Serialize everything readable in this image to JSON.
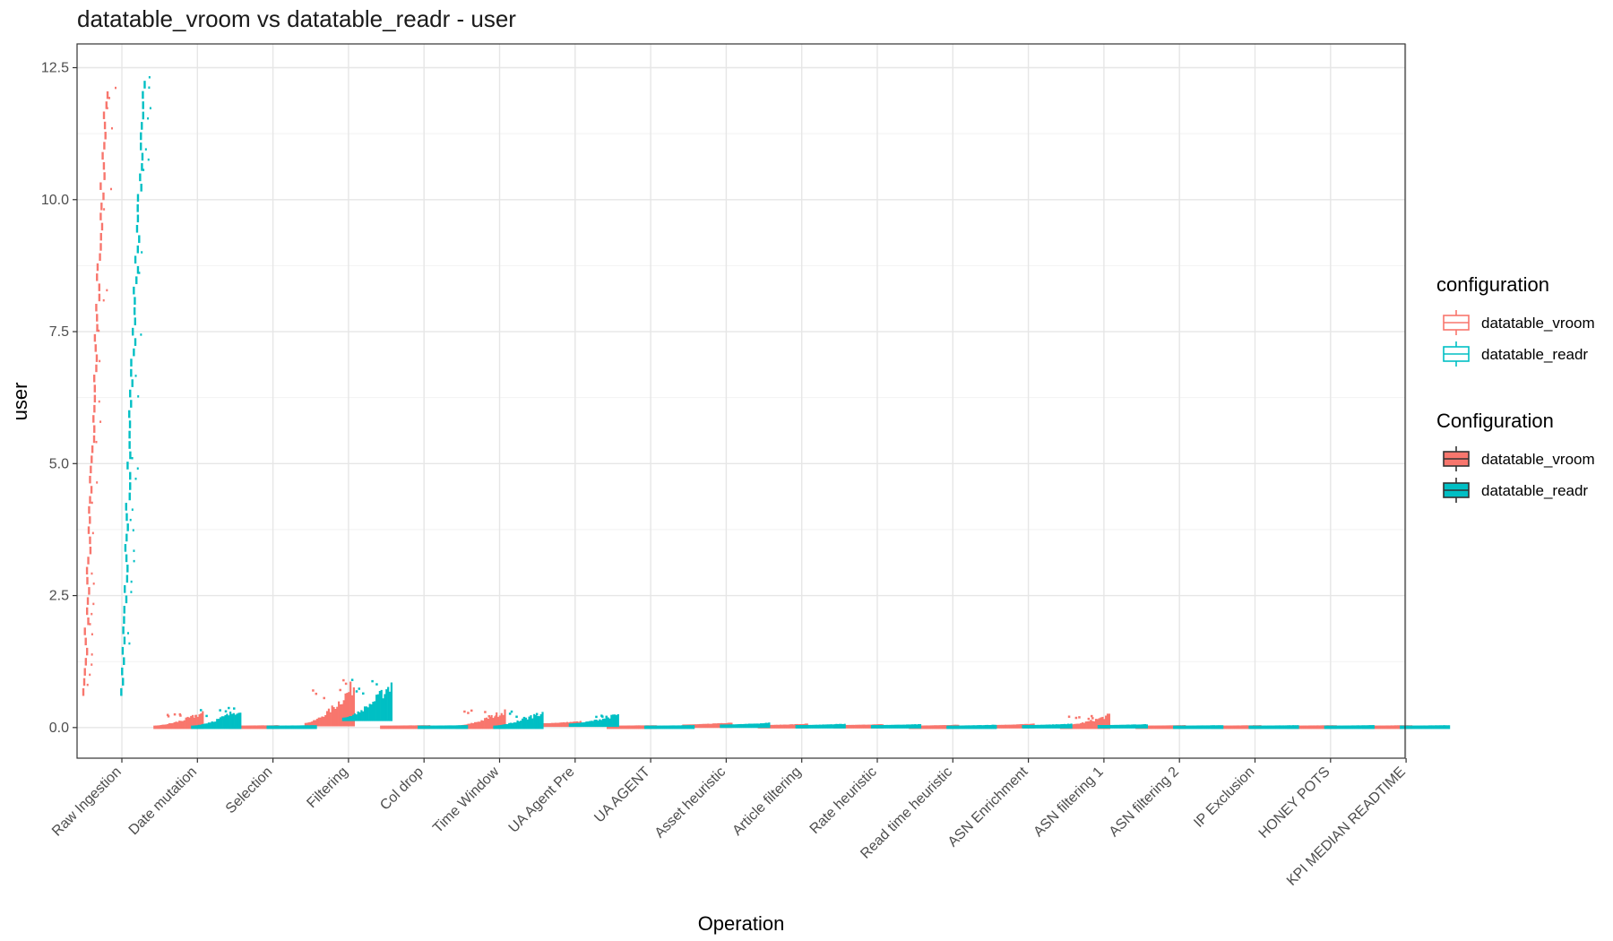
{
  "chart_data": {
    "type": "boxplot",
    "title": "datatable_vroom vs datatable_readr - user",
    "xlabel": "Operation",
    "ylabel": "user",
    "ylim": [
      -0.58,
      12.95
    ],
    "yticks": [
      0.0,
      2.5,
      5.0,
      7.5,
      10.0,
      12.5
    ],
    "ytick_labels": [
      "0.0",
      "2.5",
      "5.0",
      "7.5",
      "10.0",
      "12.5"
    ],
    "grid": true,
    "legend_position": "right",
    "categories": [
      "Raw Ingestion",
      "Date mutation",
      "Selection",
      "Filtering",
      "Col drop",
      "Time Window",
      "UA Agent Pre",
      "UA AGENT",
      "Asset heuristic",
      "Article filtering",
      "Rate heuristic",
      "Read time heuristic",
      "ASN Enrichment",
      "ASN filtering 1",
      "ASN filtering 2",
      "IP Exclusion",
      "HONEY POTS",
      "KPI MEDIAN READTIME"
    ],
    "series": [
      {
        "name": "datatable_vroom",
        "color": "#F8766D",
        "ranges": [
          [
            0.6,
            12.1
          ],
          [
            0.0,
            0.3
          ],
          [
            0.0,
            0.01
          ],
          [
            0.05,
            0.93
          ],
          [
            0.0,
            0.01
          ],
          [
            0.0,
            0.35
          ],
          [
            0.04,
            0.09
          ],
          [
            0.0,
            0.01
          ],
          [
            0.02,
            0.07
          ],
          [
            0.01,
            0.04
          ],
          [
            0.01,
            0.03
          ],
          [
            0.0,
            0.02
          ],
          [
            0.01,
            0.04
          ],
          [
            0.0,
            0.24
          ],
          [
            0.0,
            0.01
          ],
          [
            0.0,
            0.01
          ],
          [
            0.0,
            0.01
          ],
          [
            0.0,
            0.01
          ]
        ]
      },
      {
        "name": "datatable_readr",
        "color": "#00BFC4",
        "ranges": [
          [
            0.6,
            12.3
          ],
          [
            0.0,
            0.4
          ],
          [
            0.0,
            0.01
          ],
          [
            0.15,
            0.95
          ],
          [
            0.0,
            0.01
          ],
          [
            0.0,
            0.33
          ],
          [
            0.04,
            0.25
          ],
          [
            0.0,
            0.01
          ],
          [
            0.02,
            0.06
          ],
          [
            0.01,
            0.04
          ],
          [
            0.01,
            0.03
          ],
          [
            0.0,
            0.02
          ],
          [
            0.01,
            0.04
          ],
          [
            0.01,
            0.03
          ],
          [
            0.0,
            0.01
          ],
          [
            0.0,
            0.01
          ],
          [
            0.0,
            0.01
          ],
          [
            0.0,
            0.01
          ]
        ]
      }
    ],
    "legends": [
      {
        "title": "configuration",
        "style": "outline",
        "entries": [
          "datatable_vroom",
          "datatable_readr"
        ]
      },
      {
        "title": "Configuration",
        "style": "filled",
        "entries": [
          "datatable_vroom",
          "datatable_readr"
        ]
      }
    ]
  }
}
